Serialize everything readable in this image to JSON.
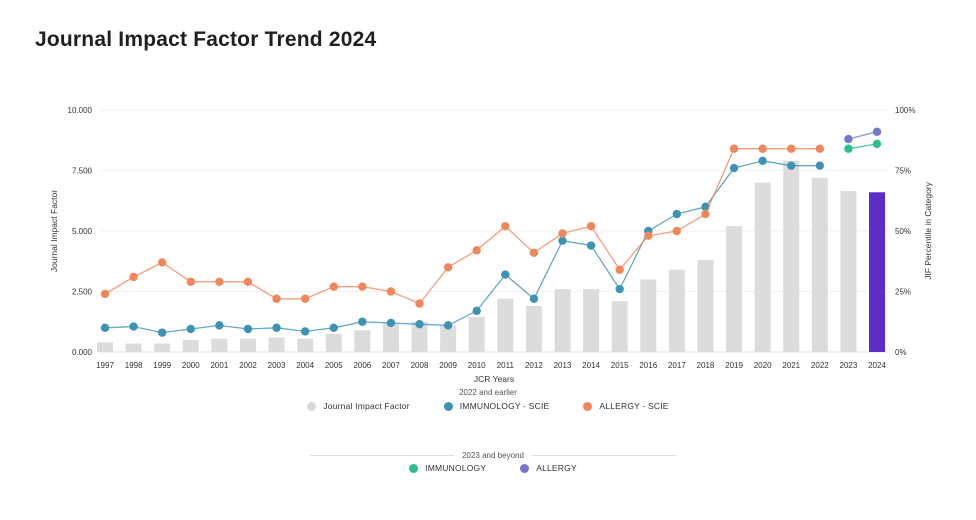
{
  "header": {
    "title": "Journal Impact Factor Trend 2024"
  },
  "chart_data": {
    "type": "combo-bar-line",
    "x": [
      "1997",
      "1998",
      "1999",
      "2000",
      "2001",
      "2002",
      "2003",
      "2004",
      "2005",
      "2006",
      "2007",
      "2008",
      "2009",
      "2010",
      "2011",
      "2012",
      "2013",
      "2014",
      "2015",
      "2016",
      "2017",
      "2018",
      "2019",
      "2020",
      "2021",
      "2022",
      "2023",
      "2024"
    ],
    "xlabel": "JCR Years",
    "grid": "faint-horizontal",
    "y_left": {
      "label": "Journal Impact Factor",
      "tick_labels": [
        "0.000",
        "2.500",
        "5.000",
        "7.500",
        "10.000"
      ],
      "tick_values": [
        0,
        2.5,
        5,
        7.5,
        10
      ],
      "range": [
        0,
        10
      ]
    },
    "y_right": {
      "label": "JIF Percentile in Category",
      "tick_labels": [
        "0%",
        "25%",
        "50%",
        "75%",
        "100%"
      ],
      "tick_values": [
        0,
        25,
        50,
        75,
        100
      ],
      "range": [
        0,
        100
      ]
    },
    "series": [
      {
        "key": "jif_bars",
        "name": "Journal Impact Factor",
        "type": "bar",
        "axis": "left",
        "color": "#dcdcdc",
        "highlight_year": "2024",
        "highlight_color": "#5a2fc8",
        "values": [
          0.4,
          0.35,
          0.35,
          0.5,
          0.55,
          0.55,
          0.6,
          0.55,
          0.75,
          0.9,
          1.2,
          1.25,
          1.1,
          1.45,
          2.2,
          1.9,
          2.6,
          2.6,
          2.1,
          3.0,
          3.4,
          3.8,
          5.2,
          7.0,
          7.9,
          7.2,
          6.65,
          6.6
        ]
      },
      {
        "key": "immunology_scie",
        "name": "IMMUNOLOGY - SCIE",
        "type": "line",
        "axis": "left",
        "color": "#3e93b4",
        "values": [
          1.0,
          1.05,
          0.8,
          0.95,
          1.1,
          0.95,
          1.0,
          0.85,
          1.0,
          1.25,
          1.2,
          1.15,
          1.1,
          1.7,
          3.2,
          2.2,
          4.6,
          4.4,
          2.6,
          5.0,
          5.7,
          6.0,
          7.6,
          7.9,
          7.7,
          7.7,
          null,
          null
        ]
      },
      {
        "key": "allergy_scie",
        "name": "ALLERGY - SCIE",
        "type": "line",
        "axis": "left",
        "color": "#ef875a",
        "values": [
          2.4,
          3.1,
          3.7,
          2.9,
          2.9,
          2.9,
          2.2,
          2.2,
          2.7,
          2.7,
          2.5,
          2.0,
          3.5,
          4.2,
          5.2,
          4.1,
          4.9,
          5.2,
          3.4,
          4.8,
          5.0,
          5.7,
          8.4,
          8.4,
          8.4,
          8.4,
          null,
          null
        ]
      },
      {
        "key": "immunology",
        "name": "IMMUNOLOGY",
        "type": "line",
        "axis": "right",
        "color": "#2bbd8e",
        "values": [
          null,
          null,
          null,
          null,
          null,
          null,
          null,
          null,
          null,
          null,
          null,
          null,
          null,
          null,
          null,
          null,
          null,
          null,
          null,
          null,
          null,
          null,
          null,
          null,
          null,
          null,
          84,
          86
        ]
      },
      {
        "key": "allergy",
        "name": "ALLERGY",
        "type": "line",
        "axis": "right",
        "color": "#7477cd",
        "values": [
          null,
          null,
          null,
          null,
          null,
          null,
          null,
          null,
          null,
          null,
          null,
          null,
          null,
          null,
          null,
          null,
          null,
          null,
          null,
          null,
          null,
          null,
          null,
          null,
          null,
          null,
          88,
          91
        ]
      }
    ],
    "legends": [
      {
        "title": "2022 and earlier",
        "items": [
          {
            "label": "Journal Impact Factor",
            "color": "#d9d9d9"
          },
          {
            "label": "IMMUNOLOGY - SCIE",
            "color": "#3e93b4"
          },
          {
            "label": "ALLERGY - SCIE",
            "color": "#ef875a"
          }
        ]
      },
      {
        "title": "2023 and beyond",
        "items": [
          {
            "label": "IMMUNOLOGY",
            "color": "#2bbd8e"
          },
          {
            "label": "ALLERGY",
            "color": "#7477cd"
          }
        ]
      }
    ]
  }
}
